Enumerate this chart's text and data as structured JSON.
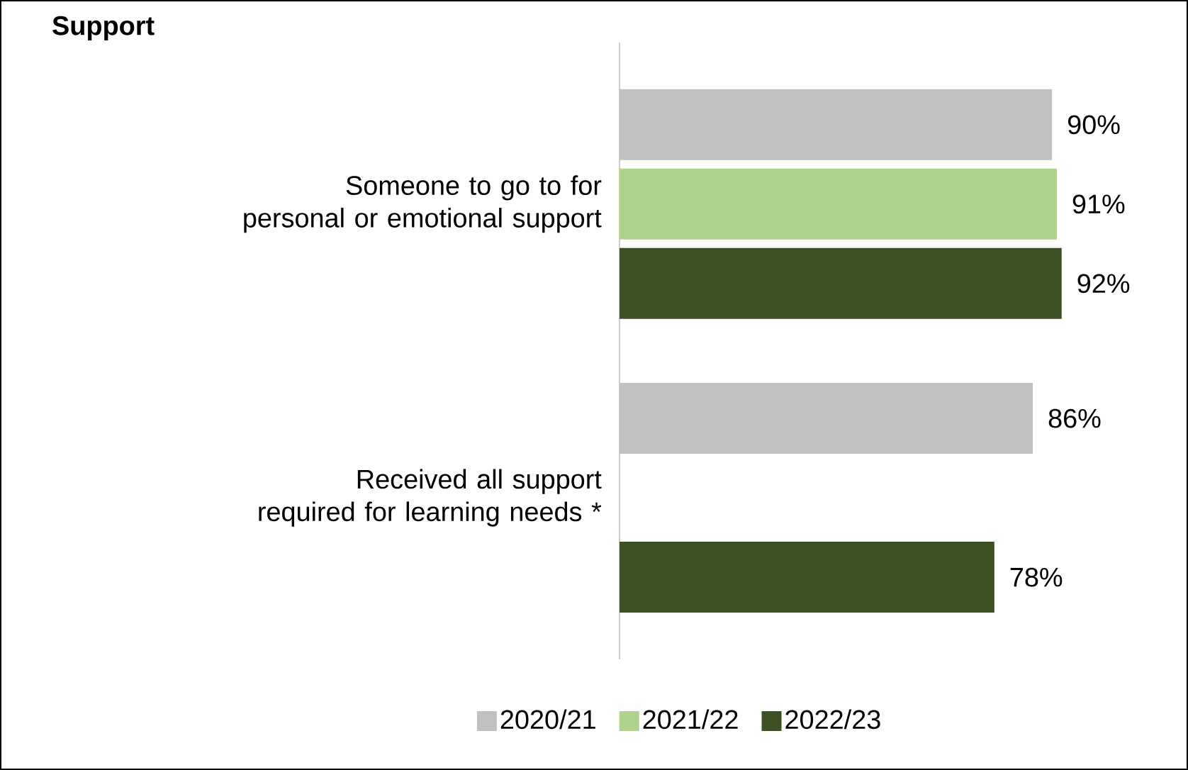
{
  "chart_data": {
    "type": "bar",
    "orientation": "horizontal",
    "title": "Support",
    "categories": [
      "Someone to go to for personal or emotional support",
      "Received all support required for learning needs *"
    ],
    "series": [
      {
        "name": "2020/21",
        "color": "#c0c0c0",
        "values": [
          90,
          86
        ],
        "value_labels": [
          "90%",
          "86%"
        ]
      },
      {
        "name": "2021/22",
        "color": "#b0d18c",
        "values": [
          91,
          null
        ],
        "value_labels": [
          "91%",
          null
        ]
      },
      {
        "name": "2022/23",
        "color": "#3d5023",
        "values": [
          92,
          78
        ],
        "value_labels": [
          "92%",
          "78%"
        ]
      }
    ],
    "legend": "bottom"
  }
}
